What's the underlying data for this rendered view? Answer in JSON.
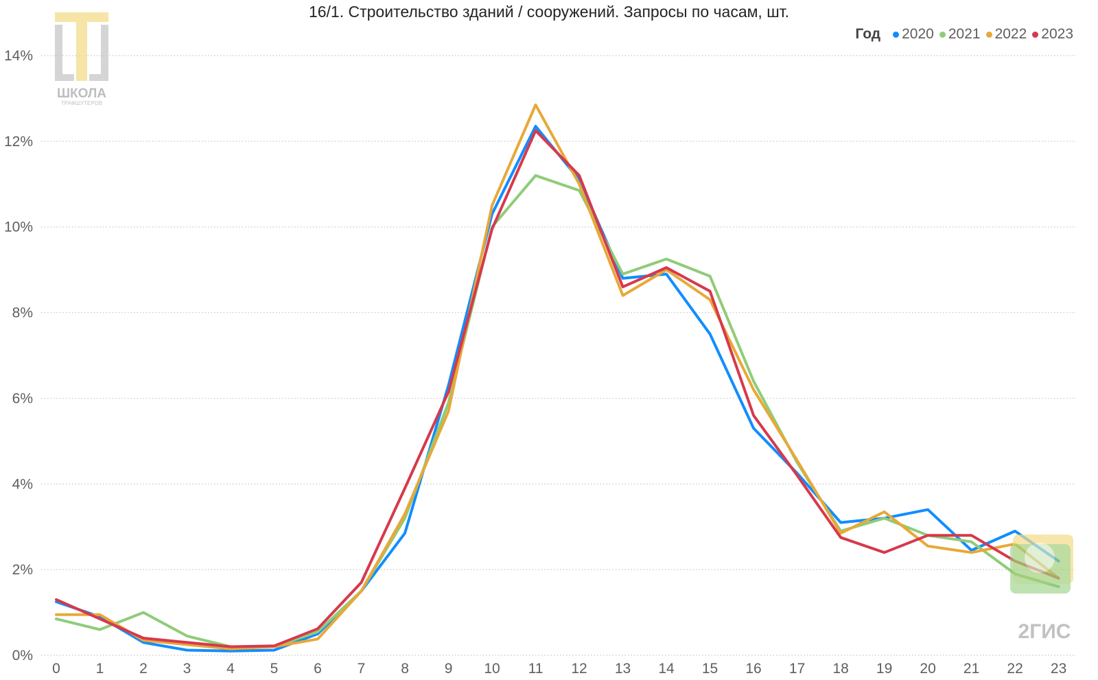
{
  "chart_data": {
    "type": "line",
    "title": "16/1. Строительство зданий / сооружений. Запросы по часам, шт.",
    "legend_title": "Год",
    "legend_position": "top-right",
    "grid": true,
    "ylim": [
      0,
      14
    ],
    "yticks": [
      "0%",
      "2%",
      "4%",
      "6%",
      "8%",
      "10%",
      "12%",
      "14%"
    ],
    "x": [
      0,
      1,
      2,
      3,
      4,
      5,
      6,
      7,
      8,
      9,
      10,
      11,
      12,
      13,
      14,
      15,
      16,
      17,
      18,
      19,
      20,
      21,
      22,
      23
    ],
    "series": [
      {
        "name": "2020",
        "color": "#118dff",
        "values": [
          1.25,
          0.9,
          0.3,
          0.12,
          0.1,
          0.12,
          0.5,
          1.5,
          2.85,
          6.3,
          10.3,
          12.35,
          11.1,
          8.8,
          8.9,
          7.5,
          5.3,
          4.25,
          3.1,
          3.2,
          3.4,
          2.45,
          2.9,
          2.2
        ]
      },
      {
        "name": "2021",
        "color": "#8fcc78",
        "values": [
          0.85,
          0.6,
          1.0,
          0.45,
          0.2,
          0.2,
          0.55,
          1.5,
          3.2,
          5.9,
          10.0,
          11.2,
          10.85,
          8.9,
          9.25,
          8.85,
          6.4,
          4.5,
          2.9,
          3.2,
          2.8,
          2.65,
          1.9,
          1.6
        ]
      },
      {
        "name": "2022",
        "color": "#e8a838",
        "values": [
          0.95,
          0.95,
          0.35,
          0.25,
          0.15,
          0.2,
          0.38,
          1.5,
          3.3,
          5.7,
          10.5,
          12.85,
          11.0,
          8.4,
          9.0,
          8.3,
          6.2,
          4.55,
          2.85,
          3.35,
          2.55,
          2.4,
          2.6,
          1.8
        ]
      },
      {
        "name": "2023",
        "color": "#d6394c",
        "values": [
          1.3,
          0.85,
          0.4,
          0.3,
          0.2,
          0.22,
          0.62,
          1.7,
          3.9,
          6.15,
          9.95,
          12.25,
          11.2,
          8.6,
          9.05,
          8.5,
          5.6,
          4.2,
          2.75,
          2.4,
          2.8,
          2.8,
          2.2,
          1.8
        ]
      }
    ]
  },
  "logos": {
    "school_word": "ШКОЛА",
    "school_sub": "ТРАФШУТЕРОВ",
    "gis_word": "2ГИС"
  }
}
